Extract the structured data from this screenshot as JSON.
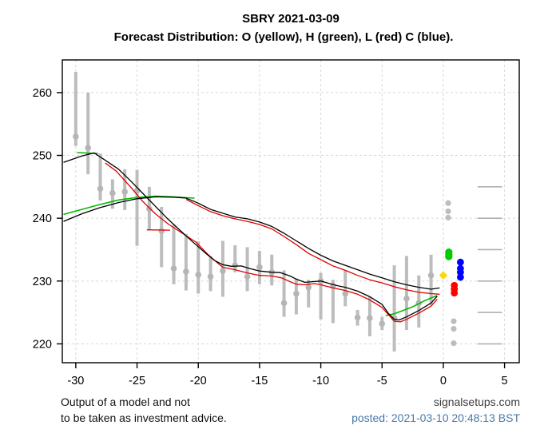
{
  "header": {
    "title": "SBRY 2021-03-09",
    "subtitle": "Forecast Distribution: O (yellow), H (green), L (red) C (blue)."
  },
  "footer": {
    "disclaimer_line1": "Output of a model and not",
    "disclaimer_line2": "to be taken as investment advice.",
    "site": "signalsetups.com",
    "posted": "posted: 2021-03-10 20:48:13 BST"
  },
  "chart_data": {
    "type": "mixed",
    "title": "SBRY 2021-03-09",
    "subtitle": "Forecast Distribution: O (yellow), H (green), L (red) C (blue).",
    "xlabel": "",
    "ylabel": "",
    "x_axis": {
      "min": -31.1,
      "max": 6.2,
      "ticks": [
        -30,
        -25,
        -20,
        -15,
        -10,
        -5,
        0,
        5
      ]
    },
    "y_axis": {
      "min": 217.0,
      "max": 265.2,
      "ticks": [
        220,
        230,
        240,
        250,
        260
      ]
    },
    "grid": {
      "shown": true,
      "color": "#d8d8d8",
      "dash": "3,3"
    },
    "colors": {
      "bar": "#bdbdbd",
      "bar_marker": "#b5b5b5",
      "black_line": "#000000",
      "red_line": "#e00000",
      "green_line": "#00bb00",
      "open": "#ffd700",
      "high": "#00cc00",
      "low": "#ff0000",
      "close": "#0000ff",
      "outlier": "#bdbdbd",
      "right_tick": "#b0b0b0",
      "axis": "#000000"
    },
    "history_bars": [
      {
        "x": -30,
        "high": 263.3,
        "low": 251.5,
        "close": 253.0
      },
      {
        "x": -29,
        "high": 260.0,
        "low": 247.0,
        "close": 251.2
      },
      {
        "x": -28,
        "high": 250.3,
        "low": 242.8,
        "close": 244.7
      },
      {
        "x": -27,
        "high": 246.2,
        "low": 241.5,
        "close": 244.0
      },
      {
        "x": -26,
        "high": 247.8,
        "low": 241.3,
        "close": 244.2
      },
      {
        "x": -25,
        "high": 247.7,
        "low": 235.6,
        "close": 244.4
      },
      {
        "x": -24,
        "high": 245.0,
        "low": 238.2,
        "close": 241.5
      },
      {
        "x": -23,
        "high": 241.8,
        "low": 232.2,
        "close": 238.0
      },
      {
        "x": -22,
        "high": 239.0,
        "low": 229.5,
        "close": 232.0
      },
      {
        "x": -21,
        "high": 237.5,
        "low": 228.5,
        "close": 231.5
      },
      {
        "x": -20,
        "high": 236.3,
        "low": 228.0,
        "close": 231.0
      },
      {
        "x": -19,
        "high": 233.9,
        "low": 228.4,
        "close": 230.7
      },
      {
        "x": -18,
        "high": 236.4,
        "low": 227.5,
        "close": 231.6
      },
      {
        "x": -17,
        "high": 235.7,
        "low": 231.4,
        "close": 232.5
      },
      {
        "x": -16,
        "high": 235.4,
        "low": 228.4,
        "close": 230.7
      },
      {
        "x": -15,
        "high": 234.8,
        "low": 229.5,
        "close": 232.2
      },
      {
        "x": -14,
        "high": 234.2,
        "low": 229.3,
        "close": 231.4
      },
      {
        "x": -13,
        "high": 231.7,
        "low": 224.3,
        "close": 226.5
      },
      {
        "x": -12,
        "high": 230.4,
        "low": 224.7,
        "close": 228.0
      },
      {
        "x": -11,
        "high": 230.2,
        "low": 225.8,
        "close": 229.0
      },
      {
        "x": -10,
        "high": 231.3,
        "low": 223.9,
        "close": 230.0
      },
      {
        "x": -9,
        "high": 230.2,
        "low": 223.3,
        "close": 229.2
      },
      {
        "x": -8,
        "high": 231.7,
        "low": 226.0,
        "close": 228.0
      },
      {
        "x": -7,
        "high": 225.4,
        "low": 222.9,
        "close": 224.2
      },
      {
        "x": -6,
        "high": 227.5,
        "low": 221.2,
        "close": 224.1
      },
      {
        "x": -5,
        "high": 224.3,
        "low": 222.2,
        "close": 223.2
      },
      {
        "x": -4,
        "high": 232.5,
        "low": 218.8,
        "close": 224.1
      },
      {
        "x": -3,
        "high": 234.0,
        "low": 222.2,
        "close": 227.2
      },
      {
        "x": -2,
        "high": 230.9,
        "low": 222.6,
        "close": 226.5
      },
      {
        "x": -1,
        "high": 234.2,
        "low": 226.2,
        "close": 230.9
      }
    ],
    "smooth_lines": [
      {
        "name": "green-top-dash",
        "color_key": "green_line",
        "width": 1.6,
        "points": [
          [
            -29.9,
            250.45
          ],
          [
            -28.2,
            250.3
          ]
        ]
      },
      {
        "name": "green-rising",
        "color_key": "green_line",
        "width": 1.6,
        "points": [
          [
            -31,
            240.6
          ],
          [
            -29.5,
            241.4
          ],
          [
            -28,
            242.2
          ],
          [
            -26.5,
            242.9
          ],
          [
            -25,
            243.3
          ],
          [
            -23.5,
            243.5
          ],
          [
            -22,
            243.4
          ],
          [
            -20.3,
            243.2
          ]
        ]
      },
      {
        "name": "green-recovery",
        "color_key": "green_line",
        "width": 1.6,
        "points": [
          [
            -4.7,
            224.5
          ],
          [
            -4,
            224.8
          ],
          [
            -3.3,
            225.3
          ],
          [
            -2.5,
            225.9
          ],
          [
            -1.5,
            226.9
          ],
          [
            -0.5,
            227.7
          ]
        ]
      },
      {
        "name": "red-flat-mid",
        "color_key": "red_line",
        "width": 1.3,
        "points": [
          [
            -24.2,
            238.15
          ],
          [
            -22.3,
            238.1
          ]
        ]
      },
      {
        "name": "red-upper",
        "color_key": "red_line",
        "width": 1.3,
        "points": [
          [
            -21,
            243.0
          ],
          [
            -20,
            242.0
          ],
          [
            -19,
            241.05
          ],
          [
            -18,
            240.4
          ],
          [
            -17,
            239.9
          ],
          [
            -16,
            239.5
          ],
          [
            -15,
            239.0
          ],
          [
            -14,
            238.3
          ],
          [
            -13,
            237.1
          ],
          [
            -12,
            235.8
          ],
          [
            -11,
            234.4
          ],
          [
            -10,
            233.4
          ],
          [
            -9,
            232.4
          ],
          [
            -8,
            231.7
          ],
          [
            -7,
            230.9
          ],
          [
            -6,
            230.2
          ],
          [
            -5,
            229.7
          ],
          [
            -4,
            229.1
          ],
          [
            -3,
            228.6
          ],
          [
            -2,
            228.2
          ],
          [
            -1,
            228.0
          ],
          [
            -0.3,
            227.9
          ]
        ]
      },
      {
        "name": "red-falling",
        "color_key": "red_line",
        "width": 1.3,
        "points": [
          [
            -27.6,
            248.8
          ],
          [
            -26.7,
            247.5
          ],
          [
            -25.5,
            244.9
          ],
          [
            -24.6,
            242.8
          ],
          [
            -23.5,
            240.7
          ],
          [
            -22.4,
            239.0
          ],
          [
            -21.3,
            237.6
          ],
          [
            -20.2,
            236.2
          ],
          [
            -19.3,
            234.4
          ],
          [
            -18.5,
            233.0
          ],
          [
            -18,
            232.2
          ],
          [
            -17,
            231.8
          ],
          [
            -16,
            231.3
          ],
          [
            -15,
            230.9
          ],
          [
            -14,
            230.8
          ],
          [
            -13.2,
            230.5
          ],
          [
            -12.5,
            229.9
          ],
          [
            -12,
            229.5
          ],
          [
            -11.3,
            229.4
          ],
          [
            -10.5,
            229.6
          ],
          [
            -10,
            229.4
          ],
          [
            -9,
            228.9
          ],
          [
            -8,
            228.5
          ],
          [
            -7,
            227.9
          ],
          [
            -6,
            227.0
          ],
          [
            -5,
            225.8
          ],
          [
            -4.5,
            224.7
          ],
          [
            -4,
            223.6
          ],
          [
            -3.5,
            223.5
          ],
          [
            -3,
            223.9
          ],
          [
            -2,
            224.9
          ],
          [
            -1,
            226.0
          ],
          [
            -0.5,
            227.1
          ]
        ]
      },
      {
        "name": "black-upper",
        "color_key": "black_line",
        "width": 1.3,
        "points": [
          [
            -31,
            239.5
          ],
          [
            -29.5,
            240.7
          ],
          [
            -28,
            241.7
          ],
          [
            -26.5,
            242.5
          ],
          [
            -25,
            243.1
          ],
          [
            -23.5,
            243.4
          ],
          [
            -22,
            243.35
          ],
          [
            -21,
            243.2
          ],
          [
            -20,
            242.4
          ],
          [
            -19,
            241.4
          ],
          [
            -18,
            240.8
          ],
          [
            -17,
            240.2
          ],
          [
            -16,
            239.9
          ],
          [
            -15,
            239.4
          ],
          [
            -14,
            238.7
          ],
          [
            -13,
            237.6
          ],
          [
            -12,
            236.4
          ],
          [
            -11,
            235.2
          ],
          [
            -10,
            234.1
          ],
          [
            -9,
            233.2
          ],
          [
            -8,
            232.5
          ],
          [
            -7,
            231.8
          ],
          [
            -6,
            231.1
          ],
          [
            -5,
            230.5
          ],
          [
            -4,
            229.9
          ],
          [
            -3,
            229.4
          ],
          [
            -2,
            229.0
          ],
          [
            -1,
            228.7
          ],
          [
            -0.3,
            228.9
          ]
        ]
      },
      {
        "name": "black-peak-falling",
        "color_key": "black_line",
        "width": 1.3,
        "points": [
          [
            -31,
            248.9
          ],
          [
            -29.5,
            249.9
          ],
          [
            -28.5,
            250.4
          ],
          [
            -27.5,
            249.1
          ],
          [
            -26.5,
            247.8
          ],
          [
            -25.5,
            245.9
          ],
          [
            -24.5,
            243.9
          ],
          [
            -23.5,
            241.9
          ],
          [
            -22.5,
            239.9
          ],
          [
            -21.5,
            238.1
          ],
          [
            -20.5,
            236.3
          ],
          [
            -19.5,
            234.6
          ],
          [
            -18.7,
            233.3
          ],
          [
            -18,
            232.6
          ],
          [
            -17.3,
            232.35
          ],
          [
            -16.5,
            232.4
          ],
          [
            -15.8,
            232.0
          ],
          [
            -15,
            231.6
          ],
          [
            -14,
            231.4
          ],
          [
            -13.3,
            231.35
          ],
          [
            -12.5,
            230.8
          ],
          [
            -12,
            230.3
          ],
          [
            -11.3,
            229.8
          ],
          [
            -10.7,
            229.9
          ],
          [
            -10,
            230.0
          ],
          [
            -9.3,
            229.6
          ],
          [
            -8.5,
            229.2
          ],
          [
            -8,
            229.0
          ],
          [
            -7,
            228.4
          ],
          [
            -6,
            227.5
          ],
          [
            -5,
            226.3
          ],
          [
            -4.5,
            224.9
          ],
          [
            -4,
            223.9
          ],
          [
            -3.6,
            223.8
          ],
          [
            -3,
            224.3
          ],
          [
            -2,
            225.3
          ],
          [
            -1,
            226.5
          ],
          [
            -0.5,
            227.6
          ]
        ]
      }
    ],
    "forecast_points": [
      {
        "name": "outlier-high",
        "legend": "",
        "color_key": "outlier",
        "marker": "circle",
        "r": 3.6,
        "points": [
          [
            0.4,
            242.4
          ],
          [
            0.4,
            241.1
          ],
          [
            0.4,
            240.1
          ]
        ]
      },
      {
        "name": "high",
        "legend": "H (green)",
        "color_key": "high",
        "marker": "circle",
        "r": 4.6,
        "points": [
          [
            0.45,
            234.6
          ],
          [
            0.45,
            234.2
          ],
          [
            0.45,
            233.9
          ]
        ]
      },
      {
        "name": "close",
        "legend": "C (blue)",
        "color_key": "close",
        "marker": "circle",
        "r": 4.4,
        "points": [
          [
            1.4,
            233.0
          ],
          [
            1.4,
            232.0
          ],
          [
            1.4,
            231.4
          ],
          [
            1.4,
            230.6
          ]
        ]
      },
      {
        "name": "open",
        "legend": "O (yellow)",
        "color_key": "open",
        "marker": "diamond",
        "r": 5.2,
        "points": [
          [
            0.0,
            230.9
          ]
        ]
      },
      {
        "name": "low",
        "legend": "L (red)",
        "color_key": "low",
        "marker": "circle",
        "r": 4.4,
        "points": [
          [
            0.9,
            229.3
          ],
          [
            0.9,
            228.7
          ],
          [
            0.9,
            228.1
          ]
        ]
      },
      {
        "name": "outlier-low",
        "legend": "",
        "color_key": "outlier",
        "marker": "circle",
        "r": 3.6,
        "points": [
          [
            0.85,
            223.6
          ],
          [
            0.85,
            222.4
          ],
          [
            0.85,
            220.1
          ]
        ]
      }
    ],
    "right_tick_segments": {
      "values": [
        220,
        225,
        230,
        235,
        240,
        245
      ],
      "x_start": 2.8,
      "x_end": 4.8
    }
  }
}
